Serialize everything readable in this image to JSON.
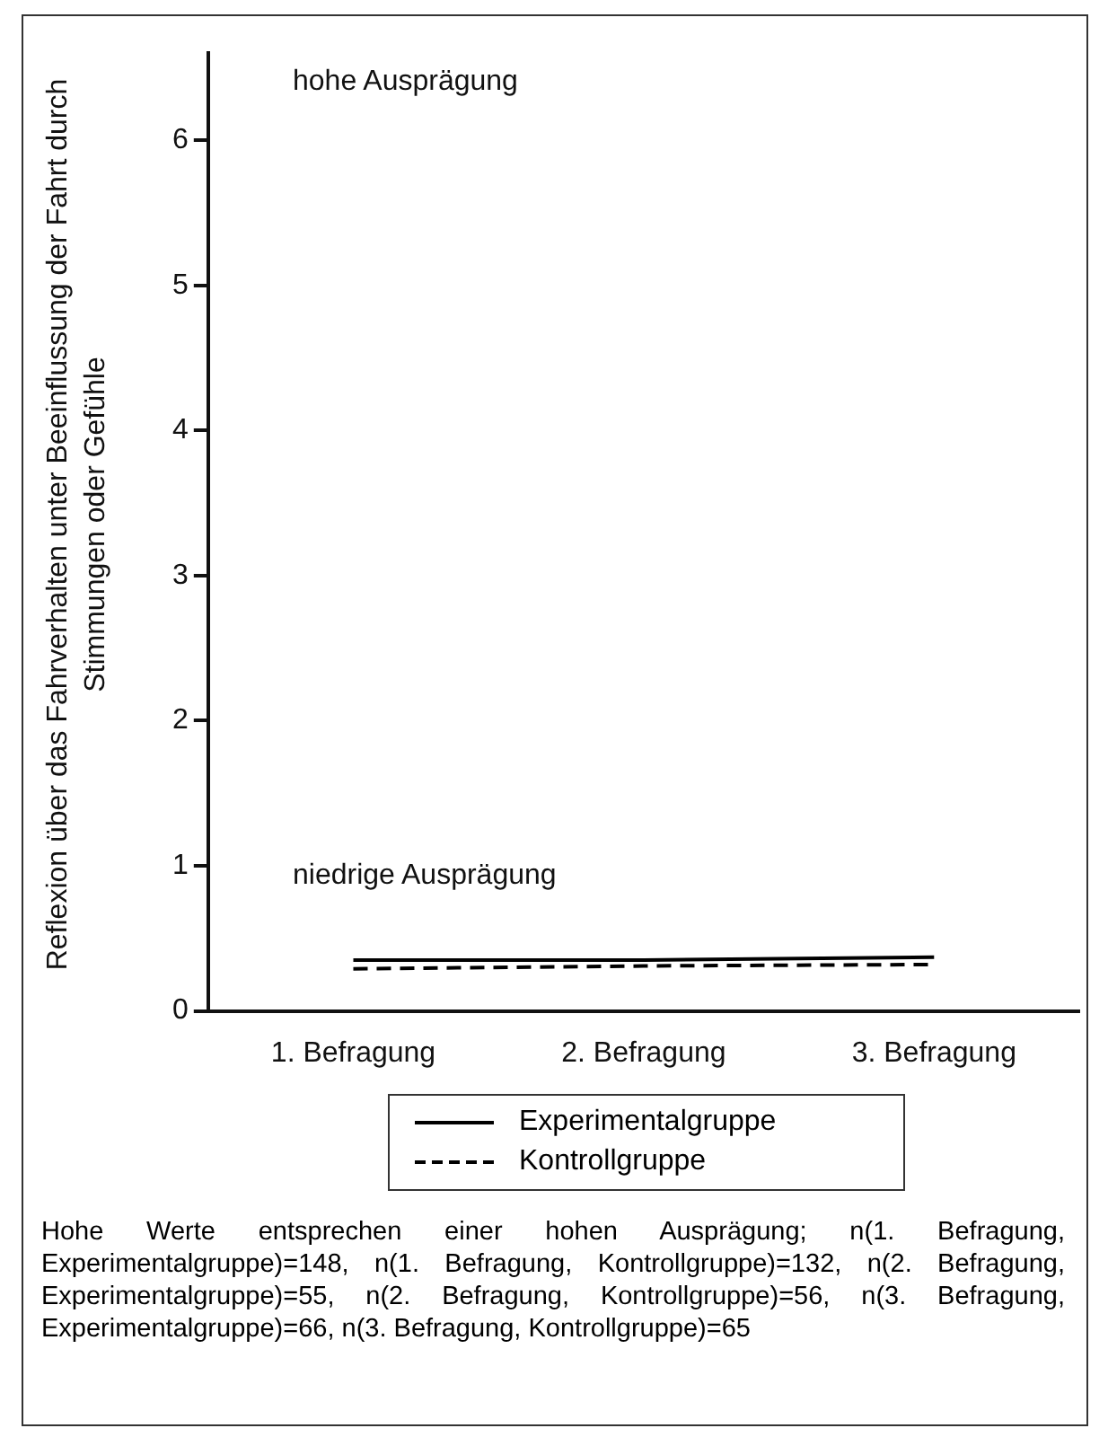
{
  "chart_data": {
    "type": "line",
    "ylabel": "Reflexion über das Fahrverhalten unter Beeinflussung der Fahrt durch Stimmungen oder Gefühle",
    "categories": [
      "1. Befragung",
      "2. Befragung",
      "3. Befragung"
    ],
    "series": [
      {
        "name": "Experimentalgruppe",
        "color": "#000000",
        "line_style": "solid",
        "values": [
          0.35,
          0.35,
          0.37
        ]
      },
      {
        "name": "Kontrollgruppe",
        "color": "#000000",
        "line_style": "dashed",
        "values": [
          0.29,
          0.31,
          0.32
        ]
      }
    ],
    "ylim": [
      0,
      6.6
    ],
    "yticks": [
      0,
      1,
      2,
      3,
      4,
      5,
      6
    ],
    "grid": false,
    "legend": "bottom",
    "marker": "none",
    "annotations": [
      "hohe Ausprägung",
      "niedrige Ausprägung",
      "Hohe Werte entsprechen einer hohen Ausprägung; n(1. Befragung, Experimentalgruppe)=148, n(1. Befragung, Kontrollgruppe)=132, n(2. Befragung, Experimentalgruppe)=55, n(2. Befragung, Kontrollgruppe)=56, n(3. Befragung, Experimentalgruppe)=66, n(3. Befragung, Kontrollgruppe)=65"
    ]
  }
}
